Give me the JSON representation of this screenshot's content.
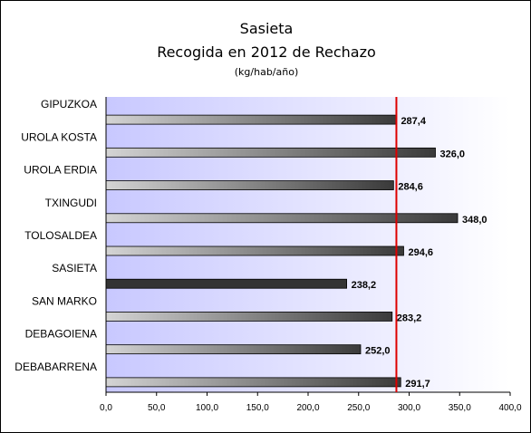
{
  "chart_data": {
    "type": "bar",
    "orientation": "horizontal",
    "title": "Sasieta",
    "subtitle": "Recogida en 2012 de Rechazo",
    "unit_label": "(kg/hab/año)",
    "categories": [
      "GIPUZKOA",
      "UROLA KOSTA",
      "UROLA ERDIA",
      "TXINGUDI",
      "TOLOSALDEA",
      "SASIETA",
      "SAN MARKO",
      "DEBAGOIENA",
      "DEBABARRENA"
    ],
    "values": [
      287.4,
      326.0,
      284.6,
      348.0,
      294.6,
      238.2,
      283.2,
      252.0,
      291.7
    ],
    "value_labels": [
      "287,4",
      "326,0",
      "284,6",
      "348,0",
      "294,6",
      "238,2",
      "283,2",
      "252,0",
      "291,7"
    ],
    "highlight_category": "SASIETA",
    "xlim": [
      0,
      400
    ],
    "x_ticks": [
      0,
      50,
      100,
      150,
      200,
      250,
      300,
      350,
      400
    ],
    "x_tick_labels": [
      "0,0",
      "50,0",
      "100,0",
      "150,0",
      "200,0",
      "250,0",
      "300,0",
      "350,0",
      "400,0"
    ],
    "reference_line": {
      "value": 287.4,
      "color": "#dd0000"
    },
    "grid": false,
    "legend": "none",
    "colors": {
      "bar_light": "#d4d4d4",
      "bar_dark": "#3a3a3a",
      "highlight_bar": "#333333",
      "plot_bg_left": "#c8c8ff",
      "plot_bg_right": "#ffffff"
    }
  }
}
